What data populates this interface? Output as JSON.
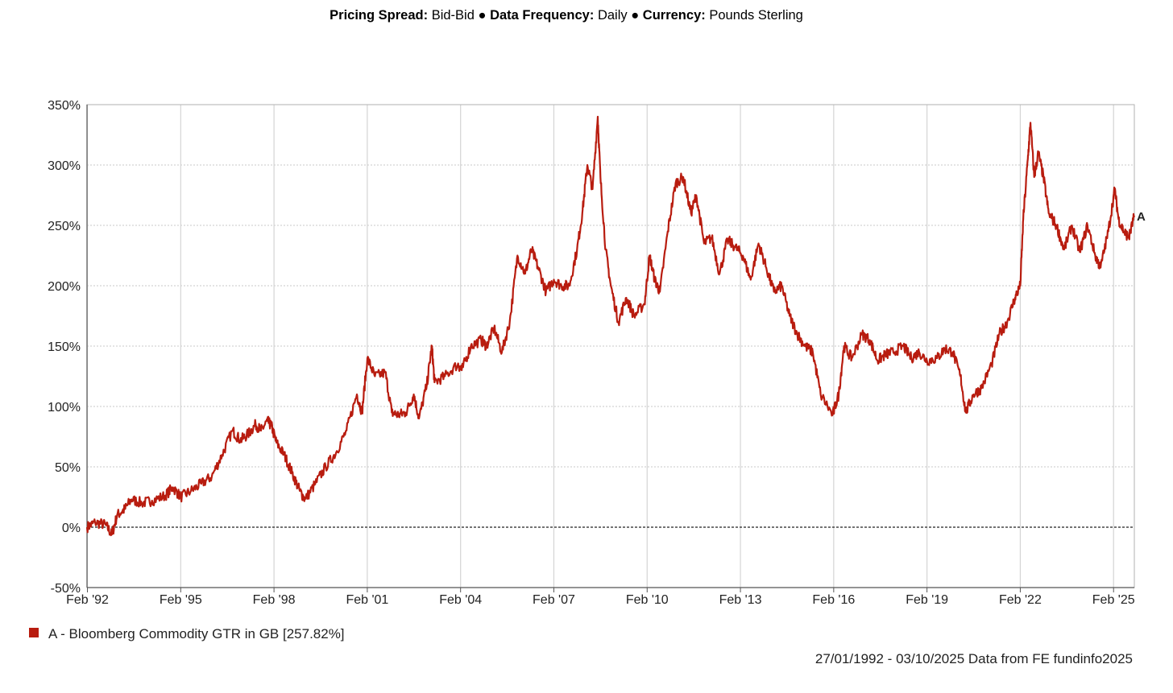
{
  "header": {
    "items": [
      {
        "label": "Pricing Spread:",
        "value": "Bid-Bid"
      },
      {
        "label": "Data Frequency:",
        "value": "Daily"
      },
      {
        "label": "Currency:",
        "value": "Pounds Sterling"
      }
    ],
    "separator": "●"
  },
  "chart_data": {
    "type": "line",
    "title": "",
    "xlabel": "",
    "ylabel": "",
    "x_ticks": [
      "Feb '92",
      "Feb '95",
      "Feb '98",
      "Feb '01",
      "Feb '04",
      "Feb '07",
      "Feb '10",
      "Feb '13",
      "Feb '16",
      "Feb '19",
      "Feb '22",
      "Feb '25"
    ],
    "y_ticks": [
      "-50%",
      "0%",
      "50%",
      "100%",
      "150%",
      "200%",
      "250%",
      "300%",
      "350%"
    ],
    "ylim": [
      -50,
      350
    ],
    "xlim": [
      "1992-01-27",
      "2025-10-03"
    ],
    "grid": true,
    "zero_line": "dotted",
    "legend_position": "bottom-left",
    "series": [
      {
        "name": "A - Bloomberg Commodity GTR in GB [257.82%]",
        "marker_label": "A",
        "color": "#b81c0f",
        "points": [
          [
            "1992-01-27",
            0
          ],
          [
            "1992-05-01",
            4
          ],
          [
            "1992-09-01",
            2
          ],
          [
            "1992-11-15",
            -6
          ],
          [
            "1993-01-15",
            10
          ],
          [
            "1993-04-15",
            15
          ],
          [
            "1993-07-01",
            23
          ],
          [
            "1993-11-01",
            20
          ],
          [
            "1994-03-01",
            22
          ],
          [
            "1994-08-01",
            26
          ],
          [
            "1994-11-01",
            33
          ],
          [
            "1995-02-01",
            25
          ],
          [
            "1995-06-01",
            30
          ],
          [
            "1995-10-01",
            36
          ],
          [
            "1996-02-01",
            42
          ],
          [
            "1996-06-01",
            60
          ],
          [
            "1996-10-01",
            80
          ],
          [
            "1997-01-01",
            72
          ],
          [
            "1997-04-01",
            77
          ],
          [
            "1997-07-01",
            85
          ],
          [
            "1997-09-01",
            80
          ],
          [
            "1997-11-15",
            88
          ],
          [
            "1998-01-01",
            84
          ],
          [
            "1998-03-01",
            70
          ],
          [
            "1998-06-01",
            60
          ],
          [
            "1998-09-01",
            45
          ],
          [
            "1998-12-01",
            30
          ],
          [
            "1999-02-01",
            23
          ],
          [
            "1999-06-01",
            36
          ],
          [
            "1999-10-01",
            50
          ],
          [
            "2000-02-01",
            62
          ],
          [
            "2000-06-01",
            80
          ],
          [
            "2000-10-01",
            110
          ],
          [
            "2000-12-01",
            95
          ],
          [
            "2001-02-01",
            140
          ],
          [
            "2001-05-01",
            125
          ],
          [
            "2001-09-01",
            128
          ],
          [
            "2001-11-15",
            95
          ],
          [
            "2002-02-01",
            93
          ],
          [
            "2002-05-01",
            95
          ],
          [
            "2002-08-01",
            110
          ],
          [
            "2002-10-01",
            90
          ],
          [
            "2003-01-01",
            118
          ],
          [
            "2003-03-01",
            150
          ],
          [
            "2003-04-01",
            120
          ],
          [
            "2003-08-01",
            125
          ],
          [
            "2004-01-01",
            135
          ],
          [
            "2004-02-15",
            130
          ],
          [
            "2004-06-01",
            150
          ],
          [
            "2004-10-01",
            155
          ],
          [
            "2004-12-01",
            150
          ],
          [
            "2005-03-01",
            165
          ],
          [
            "2005-06-01",
            145
          ],
          [
            "2005-09-01",
            170
          ],
          [
            "2005-12-01",
            225
          ],
          [
            "2006-03-01",
            210
          ],
          [
            "2006-05-15",
            230
          ],
          [
            "2006-08-01",
            215
          ],
          [
            "2006-11-01",
            195
          ],
          [
            "2007-02-01",
            205
          ],
          [
            "2007-05-01",
            200
          ],
          [
            "2007-08-01",
            200
          ],
          [
            "2007-11-01",
            230
          ],
          [
            "2008-01-01",
            260
          ],
          [
            "2008-03-01",
            300
          ],
          [
            "2008-05-01",
            280
          ],
          [
            "2008-07-01",
            340
          ],
          [
            "2008-08-01",
            290
          ],
          [
            "2008-10-01",
            230
          ],
          [
            "2008-12-01",
            200
          ],
          [
            "2009-03-01",
            170
          ],
          [
            "2009-06-01",
            190
          ],
          [
            "2009-09-01",
            175
          ],
          [
            "2010-01-01",
            185
          ],
          [
            "2010-03-01",
            225
          ],
          [
            "2010-05-01",
            205
          ],
          [
            "2010-07-01",
            195
          ],
          [
            "2010-10-01",
            245
          ],
          [
            "2011-01-01",
            285
          ],
          [
            "2011-04-01",
            290
          ],
          [
            "2011-07-01",
            260
          ],
          [
            "2011-09-01",
            275
          ],
          [
            "2011-12-01",
            235
          ],
          [
            "2012-03-01",
            240
          ],
          [
            "2012-06-01",
            210
          ],
          [
            "2012-09-01",
            238
          ],
          [
            "2012-12-01",
            232
          ],
          [
            "2013-03-01",
            225
          ],
          [
            "2013-06-01",
            205
          ],
          [
            "2013-09-01",
            235
          ],
          [
            "2013-12-01",
            215
          ],
          [
            "2014-03-01",
            195
          ],
          [
            "2014-06-01",
            200
          ],
          [
            "2014-09-01",
            175
          ],
          [
            "2014-12-01",
            160
          ],
          [
            "2015-03-01",
            150
          ],
          [
            "2015-06-01",
            145
          ],
          [
            "2015-09-01",
            110
          ],
          [
            "2016-01-20",
            93
          ],
          [
            "2016-04-01",
            110
          ],
          [
            "2016-06-01",
            150
          ],
          [
            "2016-09-01",
            140
          ],
          [
            "2017-01-01",
            160
          ],
          [
            "2017-04-01",
            155
          ],
          [
            "2017-07-01",
            138
          ],
          [
            "2017-10-01",
            143
          ],
          [
            "2018-01-01",
            145
          ],
          [
            "2018-05-01",
            150
          ],
          [
            "2018-08-01",
            140
          ],
          [
            "2018-11-01",
            145
          ],
          [
            "2019-02-01",
            138
          ],
          [
            "2019-06-01",
            140
          ],
          [
            "2019-09-01",
            148
          ],
          [
            "2019-12-01",
            145
          ],
          [
            "2020-03-01",
            125
          ],
          [
            "2020-05-01",
            95
          ],
          [
            "2020-08-01",
            110
          ],
          [
            "2020-11-01",
            115
          ],
          [
            "2021-03-01",
            135
          ],
          [
            "2021-06-01",
            160
          ],
          [
            "2021-09-01",
            170
          ],
          [
            "2021-12-01",
            190
          ],
          [
            "2022-02-01",
            200
          ],
          [
            "2022-03-08",
            255
          ],
          [
            "2022-05-01",
            305
          ],
          [
            "2022-06-01",
            335
          ],
          [
            "2022-07-15",
            290
          ],
          [
            "2022-09-01",
            310
          ],
          [
            "2022-11-01",
            290
          ],
          [
            "2023-01-01",
            260
          ],
          [
            "2023-04-01",
            250
          ],
          [
            "2023-07-01",
            230
          ],
          [
            "2023-10-01",
            250
          ],
          [
            "2024-01-01",
            228
          ],
          [
            "2024-04-01",
            250
          ],
          [
            "2024-07-01",
            225
          ],
          [
            "2024-09-01",
            215
          ],
          [
            "2024-12-01",
            245
          ],
          [
            "2025-02-15",
            280
          ],
          [
            "2025-04-01",
            255
          ],
          [
            "2025-06-01",
            245
          ],
          [
            "2025-08-01",
            240
          ],
          [
            "2025-10-03",
            258
          ]
        ]
      }
    ]
  },
  "legend": {
    "label": "A - Bloomberg Commodity GTR in GB [257.82%]"
  },
  "footer": {
    "text": "27/01/1992 - 03/10/2025 Data from FE fundinfo2025"
  }
}
